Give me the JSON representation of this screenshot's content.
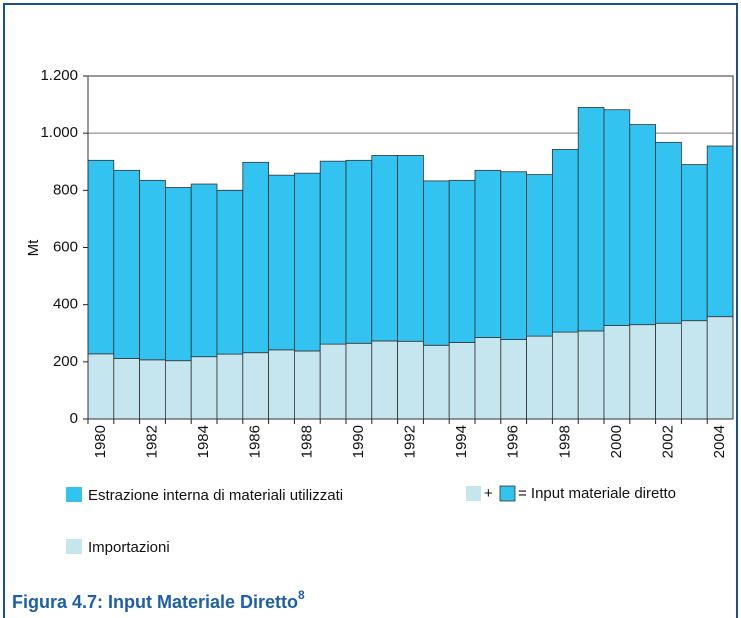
{
  "chart_data": {
    "type": "stacked_bar",
    "title": "Figura 4.7: Input Materiale Diretto",
    "title_superscript": "8",
    "ylabel": "Mt",
    "categories": [
      "1980",
      null,
      "1982",
      null,
      "1984",
      null,
      "1986",
      null,
      "1988",
      null,
      "1990",
      null,
      "1992",
      null,
      "1994",
      null,
      "1996",
      null,
      "1998",
      null,
      "2000",
      null,
      "2002",
      null,
      "2004"
    ],
    "series": [
      {
        "name": "Estrazione interna di materiali utilizzati",
        "color": "#33c3f0",
        "values": [
          677,
          658,
          628,
          606,
          604,
          573,
          666,
          611,
          622,
          640,
          640,
          649,
          650,
          575,
          567,
          585,
          587,
          565,
          639,
          782,
          755,
          700,
          633,
          546,
          597
        ]
      },
      {
        "name": "Importazioni",
        "color": "#c5e6ef",
        "values": [
          228,
          212,
          207,
          204,
          218,
          227,
          232,
          242,
          238,
          262,
          265,
          273,
          272,
          258,
          268,
          285,
          278,
          290,
          304,
          308,
          327,
          330,
          335,
          344,
          358
        ]
      }
    ],
    "legend_sum": {
      "plus": "+",
      "equals": "= Input materiale diretto"
    },
    "ylim": [
      0,
      1200
    ],
    "yticks": [
      0,
      200,
      400,
      600,
      800,
      {
        "value": 1000,
        "label": "1.000"
      },
      {
        "value": 1200,
        "label": "1.200"
      }
    ],
    "grid": true
  }
}
